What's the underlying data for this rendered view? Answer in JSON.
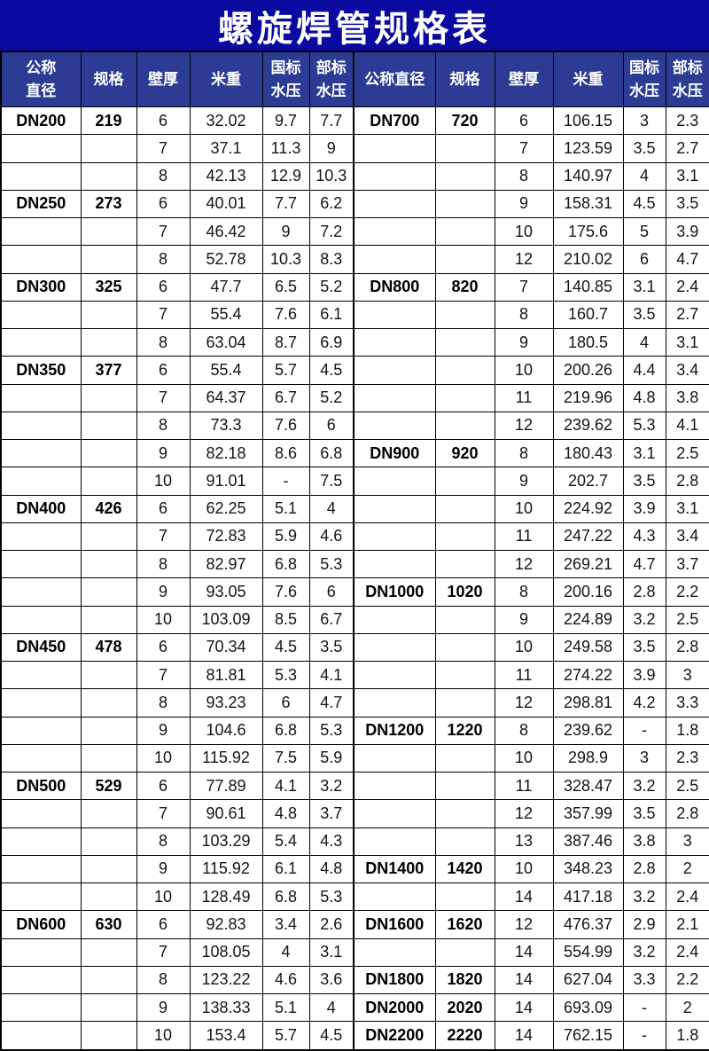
{
  "title": "螺旋焊管规格表",
  "colors": {
    "title_bg": "#0a0aa0",
    "header_bg": "#2c3c94",
    "header_text": "#ffffff",
    "border": "#000000",
    "cell_bg": "#ffffff",
    "cell_text": "#141414"
  },
  "table": {
    "headers": [
      "公称\n直径",
      "规格",
      "壁厚",
      "米重",
      "国标\n水压",
      "部标\n水压",
      "公称直径",
      "规格",
      "壁厚",
      "米重",
      "国标\n水压",
      "部标\n水压"
    ],
    "left_rows": [
      [
        "DN200",
        "219",
        "6",
        "32.02",
        "9.7",
        "7.7"
      ],
      [
        "",
        "",
        "7",
        "37.1",
        "11.3",
        "9"
      ],
      [
        "",
        "",
        "8",
        "42.13",
        "12.9",
        "10.3"
      ],
      [
        "DN250",
        "273",
        "6",
        "40.01",
        "7.7",
        "6.2"
      ],
      [
        "",
        "",
        "7",
        "46.42",
        "9",
        "7.2"
      ],
      [
        "",
        "",
        "8",
        "52.78",
        "10.3",
        "8.3"
      ],
      [
        "DN300",
        "325",
        "6",
        "47.7",
        "6.5",
        "5.2"
      ],
      [
        "",
        "",
        "7",
        "55.4",
        "7.6",
        "6.1"
      ],
      [
        "",
        "",
        "8",
        "63.04",
        "8.7",
        "6.9"
      ],
      [
        "DN350",
        "377",
        "6",
        "55.4",
        "5.7",
        "4.5"
      ],
      [
        "",
        "",
        "7",
        "64.37",
        "6.7",
        "5.2"
      ],
      [
        "",
        "",
        "8",
        "73.3",
        "7.6",
        "6"
      ],
      [
        "",
        "",
        "9",
        "82.18",
        "8.6",
        "6.8"
      ],
      [
        "",
        "",
        "10",
        "91.01",
        "-",
        "7.5"
      ],
      [
        "DN400",
        "426",
        "6",
        "62.25",
        "5.1",
        "4"
      ],
      [
        "",
        "",
        "7",
        "72.83",
        "5.9",
        "4.6"
      ],
      [
        "",
        "",
        "8",
        "82.97",
        "6.8",
        "5.3"
      ],
      [
        "",
        "",
        "9",
        "93.05",
        "7.6",
        "6"
      ],
      [
        "",
        "",
        "10",
        "103.09",
        "8.5",
        "6.7"
      ],
      [
        "DN450",
        "478",
        "6",
        "70.34",
        "4.5",
        "3.5"
      ],
      [
        "",
        "",
        "7",
        "81.81",
        "5.3",
        "4.1"
      ],
      [
        "",
        "",
        "8",
        "93.23",
        "6",
        "4.7"
      ],
      [
        "",
        "",
        "9",
        "104.6",
        "6.8",
        "5.3"
      ],
      [
        "",
        "",
        "10",
        "115.92",
        "7.5",
        "5.9"
      ],
      [
        "DN500",
        "529",
        "6",
        "77.89",
        "4.1",
        "3.2"
      ],
      [
        "",
        "",
        "7",
        "90.61",
        "4.8",
        "3.7"
      ],
      [
        "",
        "",
        "8",
        "103.29",
        "5.4",
        "4.3"
      ],
      [
        "",
        "",
        "9",
        "115.92",
        "6.1",
        "4.8"
      ],
      [
        "",
        "",
        "10",
        "128.49",
        "6.8",
        "5.3"
      ],
      [
        "DN600",
        "630",
        "6",
        "92.83",
        "3.4",
        "2.6"
      ],
      [
        "",
        "",
        "7",
        "108.05",
        "4",
        "3.1"
      ],
      [
        "",
        "",
        "8",
        "123.22",
        "4.6",
        "3.6"
      ],
      [
        "",
        "",
        "9",
        "138.33",
        "5.1",
        "4"
      ],
      [
        "",
        "",
        "10",
        "153.4",
        "5.7",
        "4.5"
      ]
    ],
    "right_rows": [
      [
        "DN700",
        "720",
        "6",
        "106.15",
        "3",
        "2.3"
      ],
      [
        "",
        "",
        "7",
        "123.59",
        "3.5",
        "2.7"
      ],
      [
        "",
        "",
        "8",
        "140.97",
        "4",
        "3.1"
      ],
      [
        "",
        "",
        "9",
        "158.31",
        "4.5",
        "3.5"
      ],
      [
        "",
        "",
        "10",
        "175.6",
        "5",
        "3.9"
      ],
      [
        "",
        "",
        "12",
        "210.02",
        "6",
        "4.7"
      ],
      [
        "DN800",
        "820",
        "7",
        "140.85",
        "3.1",
        "2.4"
      ],
      [
        "",
        "",
        "8",
        "160.7",
        "3.5",
        "2.7"
      ],
      [
        "",
        "",
        "9",
        "180.5",
        "4",
        "3.1"
      ],
      [
        "",
        "",
        "10",
        "200.26",
        "4.4",
        "3.4"
      ],
      [
        "",
        "",
        "11",
        "219.96",
        "4.8",
        "3.8"
      ],
      [
        "",
        "",
        "12",
        "239.62",
        "5.3",
        "4.1"
      ],
      [
        "DN900",
        "920",
        "8",
        "180.43",
        "3.1",
        "2.5"
      ],
      [
        "",
        "",
        "9",
        "202.7",
        "3.5",
        "2.8"
      ],
      [
        "",
        "",
        "10",
        "224.92",
        "3.9",
        "3.1"
      ],
      [
        "",
        "",
        "11",
        "247.22",
        "4.3",
        "3.4"
      ],
      [
        "",
        "",
        "12",
        "269.21",
        "4.7",
        "3.7"
      ],
      [
        "DN1000",
        "1020",
        "8",
        "200.16",
        "2.8",
        "2.2"
      ],
      [
        "",
        "",
        "9",
        "224.89",
        "3.2",
        "2.5"
      ],
      [
        "",
        "",
        "10",
        "249.58",
        "3.5",
        "2.8"
      ],
      [
        "",
        "",
        "11",
        "274.22",
        "3.9",
        "3"
      ],
      [
        "",
        "",
        "12",
        "298.81",
        "4.2",
        "3.3"
      ],
      [
        "DN1200",
        "1220",
        "8",
        "239.62",
        "-",
        "1.8"
      ],
      [
        "",
        "",
        "10",
        "298.9",
        "3",
        "2.3"
      ],
      [
        "",
        "",
        "11",
        "328.47",
        "3.2",
        "2.5"
      ],
      [
        "",
        "",
        "12",
        "357.99",
        "3.5",
        "2.8"
      ],
      [
        "",
        "",
        "13",
        "387.46",
        "3.8",
        "3"
      ],
      [
        "DN1400",
        "1420",
        "10",
        "348.23",
        "2.8",
        "2"
      ],
      [
        "",
        "",
        "14",
        "417.18",
        "3.2",
        "2.4"
      ],
      [
        "DN1600",
        "1620",
        "12",
        "476.37",
        "2.9",
        "2.1"
      ],
      [
        "",
        "",
        "14",
        "554.99",
        "3.2",
        "2.4"
      ],
      [
        "DN1800",
        "1820",
        "14",
        "627.04",
        "3.3",
        "2.2"
      ],
      [
        "DN2000",
        "2020",
        "14",
        "693.09",
        "-",
        "2"
      ],
      [
        "DN2200",
        "2220",
        "14",
        "762.15",
        "-",
        "1.8"
      ]
    ]
  }
}
